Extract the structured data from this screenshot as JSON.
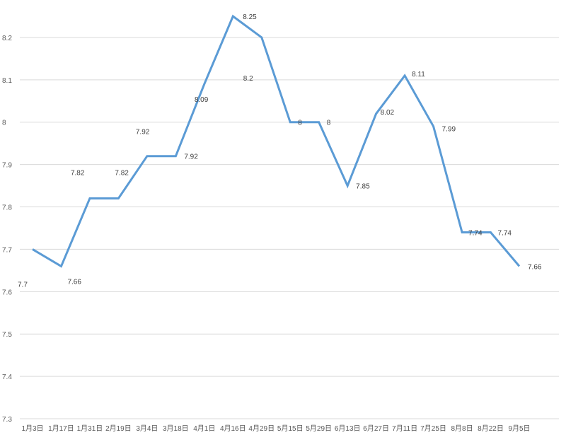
{
  "chart_data": {
    "type": "line",
    "title": "",
    "xlabel": "",
    "ylabel": "",
    "categories": [
      "1月3日",
      "1月17日",
      "1月31日",
      "2月19日",
      "3月4日",
      "3月18日",
      "4月1日",
      "4月16日",
      "4月29日",
      "5月15日",
      "5月29日",
      "6月13日",
      "6月27日",
      "7月11日",
      "7月25日",
      "8月8日",
      "8月22日",
      "9月5日"
    ],
    "series": [
      {
        "color": "#5b9bd5",
        "values": [
          7.7,
          7.66,
          7.82,
          7.82,
          7.92,
          7.92,
          8.09,
          8.25,
          8.2,
          8.0,
          8.0,
          7.85,
          8.02,
          8.11,
          7.99,
          7.74,
          7.74,
          7.66
        ],
        "value_labels": [
          "7.7",
          "7.66",
          "7.82",
          "7.82",
          "7.92",
          "7.92",
          "8.09",
          "8.25",
          "8.2",
          "8",
          "8",
          "7.85",
          "8.02",
          "8.11",
          "7.99",
          "7.74",
          "7.74",
          "7.66"
        ]
      }
    ],
    "ylim": [
      7.3,
      8.3
    ],
    "yticks": [
      7.3,
      7.4,
      7.5,
      7.6,
      7.7,
      7.8,
      7.9,
      8.0,
      8.1,
      8.2
    ],
    "ytick_labels": [
      "7.3",
      "7.4",
      "7.5",
      "7.6",
      "7.7",
      "7.8",
      "7.9",
      "8",
      "8.1",
      "8.2"
    ],
    "grid": true,
    "legend": "none",
    "gridline_color": "#d9d9d9",
    "text_color": "#595959"
  }
}
